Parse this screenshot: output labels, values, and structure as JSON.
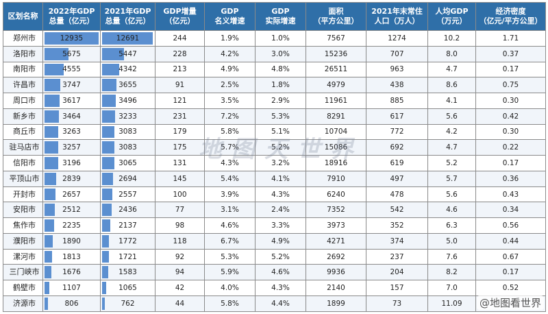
{
  "header": {
    "region": [
      "区划名称"
    ],
    "gdp2022": [
      "2022年GDP",
      "总量（亿元）"
    ],
    "gdp2021": [
      "2021年GDP",
      "总量（亿元）"
    ],
    "increase": [
      "GDP增量",
      "（亿元）"
    ],
    "nominal": [
      "GDP",
      "名义增速"
    ],
    "real": [
      "GDP",
      "实际增速"
    ],
    "area": [
      "面积",
      "（平方公里）"
    ],
    "population": [
      "2021年末常住",
      "人口（万人）"
    ],
    "percap": [
      "人均GDP",
      "（万元）"
    ],
    "density": [
      "经济密度",
      "（亿元/平方公里）"
    ]
  },
  "rows": [
    [
      "郑州市",
      "12935",
      "12691",
      "244",
      "1.9%",
      "1.0%",
      "7567",
      "1274",
      "10.2",
      "1.71"
    ],
    [
      "洛阳市",
      "5675",
      "5447",
      "228",
      "4.2%",
      "3.0%",
      "15236",
      "707",
      "8.0",
      "0.37"
    ],
    [
      "南阳市",
      "4555",
      "4342",
      "213",
      "4.9%",
      "4.8%",
      "26511",
      "963",
      "4.7",
      "0.17"
    ],
    [
      "许昌市",
      "3747",
      "3655",
      "91",
      "2.5%",
      "1.8%",
      "4979",
      "438",
      "8.6",
      "0.75"
    ],
    [
      "周口市",
      "3617",
      "3496",
      "121",
      "3.5%",
      "2.9%",
      "11961",
      "885",
      "4.1",
      "0.30"
    ],
    [
      "新乡市",
      "3464",
      "3233",
      "231",
      "7.2%",
      "5.3%",
      "8291",
      "617",
      "5.6",
      "0.42"
    ],
    [
      "商丘市",
      "3263",
      "3083",
      "179",
      "5.8%",
      "5.1%",
      "10704",
      "772",
      "4.2",
      "0.30"
    ],
    [
      "驻马店市",
      "3257",
      "3083",
      "175",
      "5.7%",
      "5.2%",
      "15086",
      "692",
      "4.7",
      "0.22"
    ],
    [
      "信阳市",
      "3196",
      "3065",
      "131",
      "4.3%",
      "3.2%",
      "18916",
      "619",
      "5.2",
      "0.17"
    ],
    [
      "平顶山市",
      "2839",
      "2694",
      "145",
      "5.4%",
      "4.1%",
      "7910",
      "497",
      "5.7",
      "0.36"
    ],
    [
      "开封市",
      "2657",
      "2557",
      "100",
      "3.9%",
      "4.3%",
      "6240",
      "478",
      "5.6",
      "0.43"
    ],
    [
      "安阳市",
      "2512",
      "2436",
      "77",
      "3.1%",
      "2.4%",
      "7352",
      "542",
      "4.6",
      "0.34"
    ],
    [
      "焦作市",
      "2235",
      "2137",
      "98",
      "4.6%",
      "3.3%",
      "3973",
      "352",
      "6.3",
      "0.56"
    ],
    [
      "濮阳市",
      "1890",
      "1772",
      "118",
      "6.7%",
      "4.9%",
      "4271",
      "374",
      "5.0",
      "0.44"
    ],
    [
      "漯河市",
      "1813",
      "1721",
      "92",
      "5.3%",
      "5.2%",
      "2692",
      "237",
      "7.6",
      "0.67"
    ],
    [
      "三门峡市",
      "1676",
      "1583",
      "94",
      "5.9%",
      "4.6%",
      "9936",
      "204",
      "8.2",
      "0.17"
    ],
    [
      "鹤壁市",
      "1107",
      "1065",
      "42",
      "4.0%",
      "4.3%",
      "2140",
      "157",
      "7.0",
      "0.52"
    ],
    [
      "济源市",
      "806",
      "762",
      "44",
      "5.8%",
      "4.4%",
      "1899",
      "73",
      "11.09",
      "0.42"
    ]
  ],
  "bar_max": 12935,
  "watermark": "地图天世界",
  "source_tag": "@地图看世界",
  "colors": {
    "header_bg": "#2f6fa8",
    "bar": "#5b8fd0",
    "grid": "#8a8a8a"
  }
}
